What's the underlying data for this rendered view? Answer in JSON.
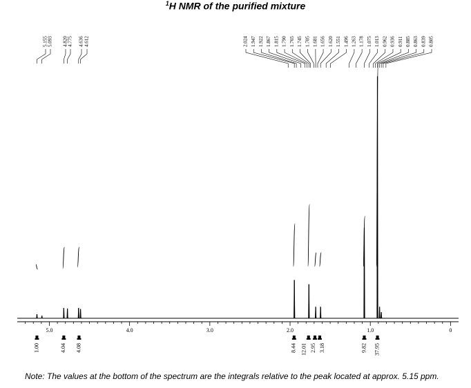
{
  "chart_data": {
    "type": "line",
    "title_sup": "1",
    "title": "H NMR of the purified mixture",
    "xlabel": "",
    "ylabel": "",
    "xlim": [
      5.4,
      -0.1
    ],
    "x_reversed": true,
    "x_ticks": [
      5.0,
      4.0,
      3.0,
      2.0,
      1.0,
      0
    ],
    "x_tick_labels": [
      "5.0",
      "4.0",
      "3.0",
      "2.0",
      "1.0",
      "0"
    ],
    "peaks": [
      {
        "ppm": 5.155,
        "height": 0.016
      },
      {
        "ppm": 5.093,
        "height": 0.01
      },
      {
        "ppm": 4.82,
        "height": 0.04
      },
      {
        "ppm": 4.775,
        "height": 0.038
      },
      {
        "ppm": 4.636,
        "height": 0.04
      },
      {
        "ppm": 4.612,
        "height": 0.036
      },
      {
        "ppm": 1.947,
        "height": 0.15
      },
      {
        "ppm": 1.765,
        "height": 0.133
      },
      {
        "ppm": 1.681,
        "height": 0.045
      },
      {
        "ppm": 1.62,
        "height": 0.045
      },
      {
        "ppm": 1.075,
        "height": 0.355
      },
      {
        "ppm": 0.911,
        "height": 0.947
      },
      {
        "ppm": 0.885,
        "height": 0.045
      },
      {
        "ppm": 0.863,
        "height": 0.024
      }
    ],
    "peak_labels": [
      "5.155",
      "5.093",
      "4.820",
      "4.775",
      "4.636",
      "4.612",
      "2.024",
      "1.947",
      "1.922",
      "1.867",
      "1.815",
      "1.790",
      "1.765",
      "1.745",
      "1.705",
      "1.681",
      "1.656",
      "1.620",
      "1.551",
      "1.496",
      "1.263",
      "1.178",
      "1.075",
      "1.013",
      "0.962",
      "0.936",
      "0.911",
      "0.885",
      "0.863",
      "0.839",
      "0.805"
    ],
    "integrals": [
      {
        "ppm": 5.155,
        "value": "1.00"
      },
      {
        "ppm": 4.82,
        "value": "4.04"
      },
      {
        "ppm": 4.63,
        "value": "4.08"
      },
      {
        "ppm": 1.95,
        "value": "8.44"
      },
      {
        "ppm": 1.77,
        "value": "12.01"
      },
      {
        "ppm": 1.69,
        "value": "2.95"
      },
      {
        "ppm": 1.63,
        "value": "3.18"
      },
      {
        "ppm": 1.075,
        "value": "9.82"
      },
      {
        "ppm": 0.911,
        "value": "37.95"
      }
    ]
  },
  "colors": {
    "line": "#000000",
    "background": "#ffffff"
  },
  "note": "Note: The values at the bottom of the spectrum are the integrals relative to the peak located at approx. 5.15 ppm."
}
